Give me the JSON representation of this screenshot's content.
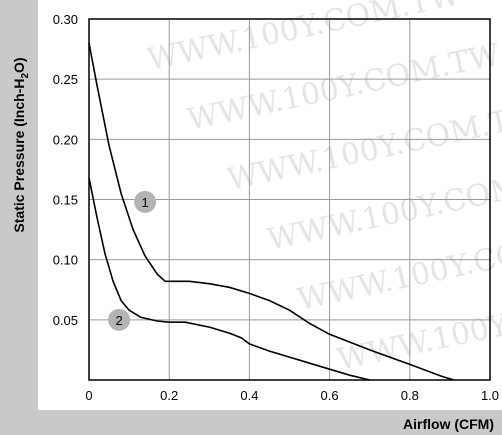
{
  "chart_data": {
    "type": "line",
    "title": "",
    "xlabel": "Airflow (CFM)",
    "ylabel_main": "Static Pressure (Inch-H",
    "ylabel_sub": "2",
    "ylabel_end": "O)",
    "xlim": [
      0,
      1.0
    ],
    "ylim": [
      0,
      0.3
    ],
    "x_ticks": [
      "0",
      "0.2",
      "0.4",
      "0.6",
      "0.8",
      "1.0"
    ],
    "y_ticks": [
      "0.30",
      "0.25",
      "0.20",
      "0.15",
      "0.10",
      "0.05"
    ],
    "grid": true,
    "watermark": "WWW.100Y.COM.TW",
    "colors": {
      "panel": "#c9c9c9",
      "marker": "#b3b3b3",
      "line": "#000000",
      "grid": "#999999"
    },
    "series": [
      {
        "name": "1",
        "points": [
          [
            0.0,
            0.28
          ],
          [
            0.02,
            0.245
          ],
          [
            0.05,
            0.195
          ],
          [
            0.08,
            0.155
          ],
          [
            0.11,
            0.125
          ],
          [
            0.14,
            0.103
          ],
          [
            0.17,
            0.088
          ],
          [
            0.19,
            0.082
          ],
          [
            0.22,
            0.082
          ],
          [
            0.25,
            0.082
          ],
          [
            0.3,
            0.08
          ],
          [
            0.35,
            0.077
          ],
          [
            0.4,
            0.072
          ],
          [
            0.45,
            0.066
          ],
          [
            0.5,
            0.058
          ],
          [
            0.55,
            0.047
          ],
          [
            0.6,
            0.038
          ],
          [
            0.7,
            0.025
          ],
          [
            0.8,
            0.013
          ],
          [
            0.88,
            0.003
          ],
          [
            0.91,
            0.0
          ]
        ],
        "marker": {
          "x": 0.14,
          "y": 0.148
        }
      },
      {
        "name": "2",
        "points": [
          [
            0.0,
            0.168
          ],
          [
            0.02,
            0.135
          ],
          [
            0.04,
            0.105
          ],
          [
            0.06,
            0.082
          ],
          [
            0.08,
            0.066
          ],
          [
            0.1,
            0.058
          ],
          [
            0.13,
            0.052
          ],
          [
            0.17,
            0.049
          ],
          [
            0.2,
            0.048
          ],
          [
            0.24,
            0.048
          ],
          [
            0.3,
            0.044
          ],
          [
            0.35,
            0.039
          ],
          [
            0.38,
            0.035
          ],
          [
            0.4,
            0.03
          ],
          [
            0.45,
            0.024
          ],
          [
            0.5,
            0.019
          ],
          [
            0.55,
            0.014
          ],
          [
            0.6,
            0.009
          ],
          [
            0.65,
            0.004
          ],
          [
            0.7,
            0.0
          ]
        ],
        "marker": {
          "x": 0.075,
          "y": 0.05
        }
      }
    ]
  }
}
